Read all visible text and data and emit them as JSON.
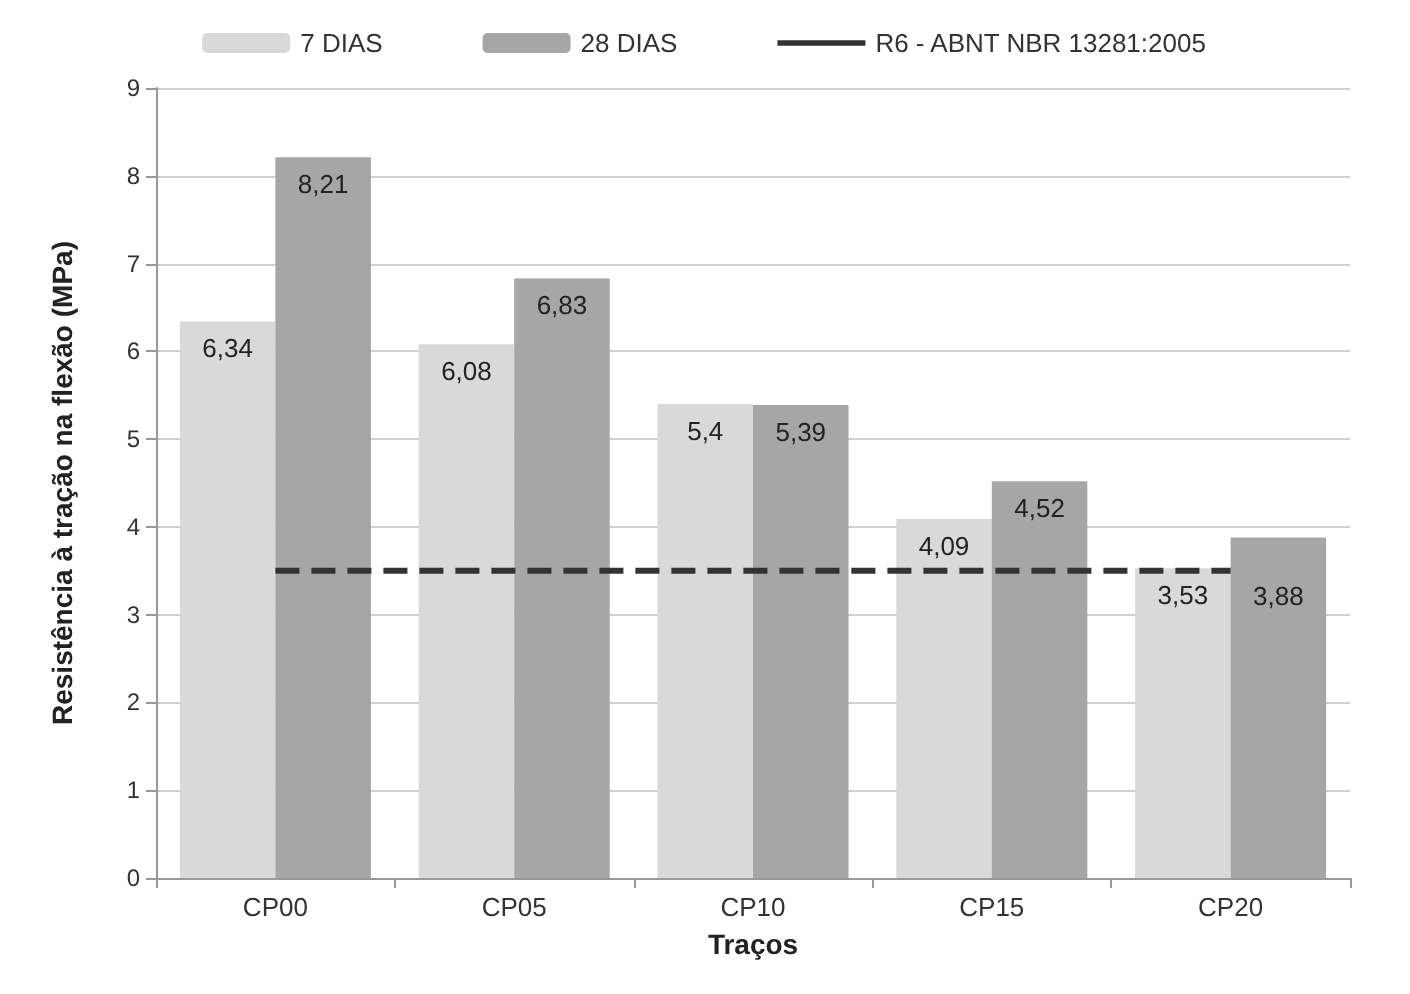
{
  "chart_data": {
    "type": "bar",
    "xlabel": "Traços",
    "ylabel": "Resistência à tração na flexão (MPa)",
    "categories": [
      "CP00",
      "CP05",
      "CP10",
      "CP15",
      "CP20"
    ],
    "series": [
      {
        "name": "7 DIAS",
        "color": "#d9d9d9",
        "values": [
          6.34,
          6.08,
          5.4,
          4.09,
          3.53
        ],
        "value_labels": [
          "6,34",
          "6,08",
          "5,4",
          "4,09",
          "3,53"
        ]
      },
      {
        "name": "28 DIAS",
        "color": "#a6a6a6",
        "values": [
          8.21,
          6.83,
          5.39,
          4.52,
          3.88
        ],
        "value_labels": [
          "8,21",
          "6,83",
          "5,39",
          "4,52",
          "3,88"
        ]
      },
      {
        "name": "R6 - ABNT NBR 13281:2005",
        "type": "line",
        "color": "#333333",
        "values": [
          3.5,
          3.5,
          3.5,
          3.5,
          3.5
        ]
      }
    ],
    "line_style": "dashed",
    "ylim": [
      0,
      9
    ],
    "yticks": [
      0,
      1,
      2,
      3,
      4,
      5,
      6,
      7,
      8,
      9
    ],
    "grid": "y",
    "legend": "top"
  }
}
